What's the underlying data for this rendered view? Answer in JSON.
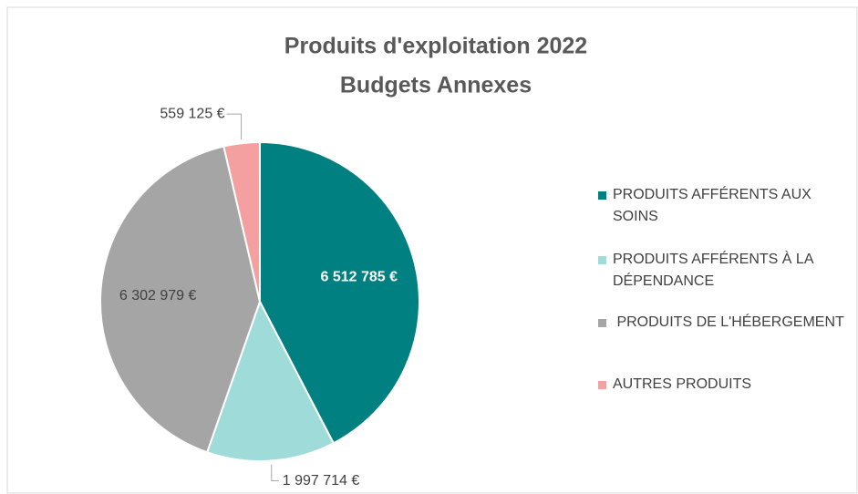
{
  "chart_data": {
    "type": "pie",
    "title": "Produits d'exploitation 2022",
    "subtitle": "Budgets Annexes",
    "categories": [
      "PRODUITS AFFÉRENTS AUX SOINS",
      "PRODUITS AFFÉRENTS À LA DÉPENDANCE",
      " PRODUITS DE L'HÉBERGEMENT",
      "AUTRES PRODUITS"
    ],
    "values": [
      6512785,
      1997714,
      6302979,
      559125
    ],
    "value_labels": [
      "6 512 785 €",
      "1 997 714 €",
      "6 302 979 €",
      "559 125 €"
    ],
    "colors": [
      "#008080",
      "#9fdcd9",
      "#a5a5a5",
      "#f4a0a0"
    ],
    "legend": "right"
  }
}
